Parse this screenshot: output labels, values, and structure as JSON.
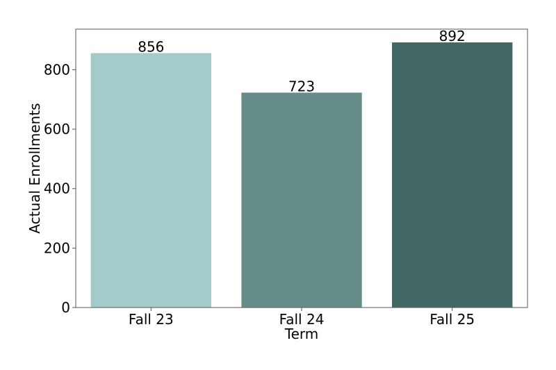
{
  "chart_data": {
    "type": "bar",
    "title": "",
    "xlabel": "Term",
    "ylabel": "Actual Enrollments",
    "categories": [
      "Fall 23",
      "Fall 24",
      "Fall 25"
    ],
    "values": [
      856,
      723,
      892
    ],
    "data_labels": [
      "856",
      "723",
      "892"
    ],
    "bar_colors": [
      "#a3cbc9",
      "#658e8b",
      "#416864"
    ],
    "ylim": [
      0,
      936.6
    ],
    "yticks": [
      0,
      200,
      400,
      600,
      800
    ],
    "ytick_labels": [
      "0",
      "200",
      "400",
      "600",
      "800"
    ],
    "grid": false,
    "legend": "none"
  }
}
